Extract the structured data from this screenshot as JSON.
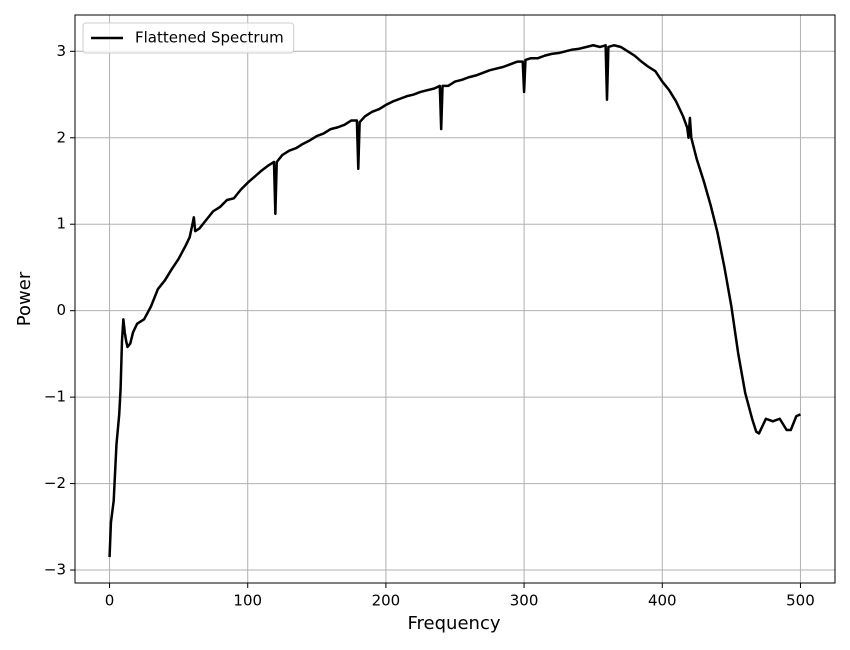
{
  "chart_data": {
    "type": "line",
    "xlabel": "Frequency",
    "ylabel": "Power",
    "xlim": [
      -25,
      525
    ],
    "ylim": [
      -3.15,
      3.42
    ],
    "xticks": [
      0,
      100,
      200,
      300,
      400,
      500
    ],
    "yticks": [
      {
        "value": -3,
        "label": "−3"
      },
      {
        "value": -2,
        "label": "−2"
      },
      {
        "value": -1,
        "label": "−1"
      },
      0,
      1,
      2,
      3
    ],
    "grid": true,
    "legend": "upper-left",
    "series": [
      {
        "name": "Flattened Spectrum",
        "color": "#000000",
        "x": [
          0,
          1,
          3,
          5,
          7,
          8,
          9,
          10,
          11,
          12,
          13,
          15,
          17,
          20,
          25,
          30,
          35,
          40,
          45,
          50,
          55,
          58,
          60,
          61,
          62,
          65,
          70,
          75,
          80,
          85,
          90,
          95,
          100,
          105,
          110,
          115,
          119,
          120,
          121,
          125,
          130,
          135,
          140,
          145,
          150,
          155,
          160,
          165,
          170,
          175,
          179,
          180,
          181,
          185,
          190,
          195,
          200,
          205,
          210,
          215,
          220,
          225,
          230,
          235,
          239,
          240,
          241,
          245,
          250,
          255,
          260,
          265,
          270,
          275,
          280,
          285,
          290,
          295,
          299,
          300,
          301,
          305,
          310,
          315,
          320,
          325,
          330,
          335,
          340,
          345,
          350,
          355,
          359,
          360,
          361,
          365,
          370,
          375,
          380,
          385,
          390,
          395,
          400,
          405,
          410,
          415,
          418,
          419,
          420,
          421,
          425,
          430,
          435,
          440,
          445,
          450,
          455,
          460,
          465,
          468,
          470,
          475,
          480,
          485,
          490,
          493,
          497,
          500
        ],
        "values": [
          -2.85,
          -2.45,
          -2.2,
          -1.55,
          -1.2,
          -0.9,
          -0.35,
          -0.1,
          -0.25,
          -0.35,
          -0.42,
          -0.38,
          -0.25,
          -0.15,
          -0.1,
          0.05,
          0.25,
          0.35,
          0.48,
          0.6,
          0.75,
          0.85,
          1.0,
          1.08,
          0.92,
          0.95,
          1.05,
          1.15,
          1.2,
          1.28,
          1.3,
          1.4,
          1.48,
          1.55,
          1.62,
          1.68,
          1.72,
          1.12,
          1.72,
          1.8,
          1.85,
          1.88,
          1.93,
          1.97,
          2.02,
          2.05,
          2.1,
          2.12,
          2.15,
          2.2,
          2.2,
          1.64,
          2.18,
          2.25,
          2.3,
          2.33,
          2.38,
          2.42,
          2.45,
          2.48,
          2.5,
          2.53,
          2.55,
          2.57,
          2.6,
          2.1,
          2.6,
          2.6,
          2.65,
          2.67,
          2.7,
          2.72,
          2.75,
          2.78,
          2.8,
          2.82,
          2.85,
          2.88,
          2.88,
          2.53,
          2.9,
          2.92,
          2.92,
          2.95,
          2.97,
          2.98,
          3.0,
          3.02,
          3.03,
          3.05,
          3.07,
          3.05,
          3.07,
          2.44,
          3.05,
          3.07,
          3.05,
          3.0,
          2.95,
          2.88,
          2.82,
          2.77,
          2.65,
          2.55,
          2.42,
          2.25,
          2.12,
          2.0,
          2.23,
          2.0,
          1.75,
          1.5,
          1.22,
          0.9,
          0.5,
          0.05,
          -0.5,
          -0.95,
          -1.25,
          -1.4,
          -1.42,
          -1.25,
          -1.28,
          -1.25,
          -1.38,
          -1.38,
          -1.22,
          -1.2
        ]
      }
    ]
  }
}
